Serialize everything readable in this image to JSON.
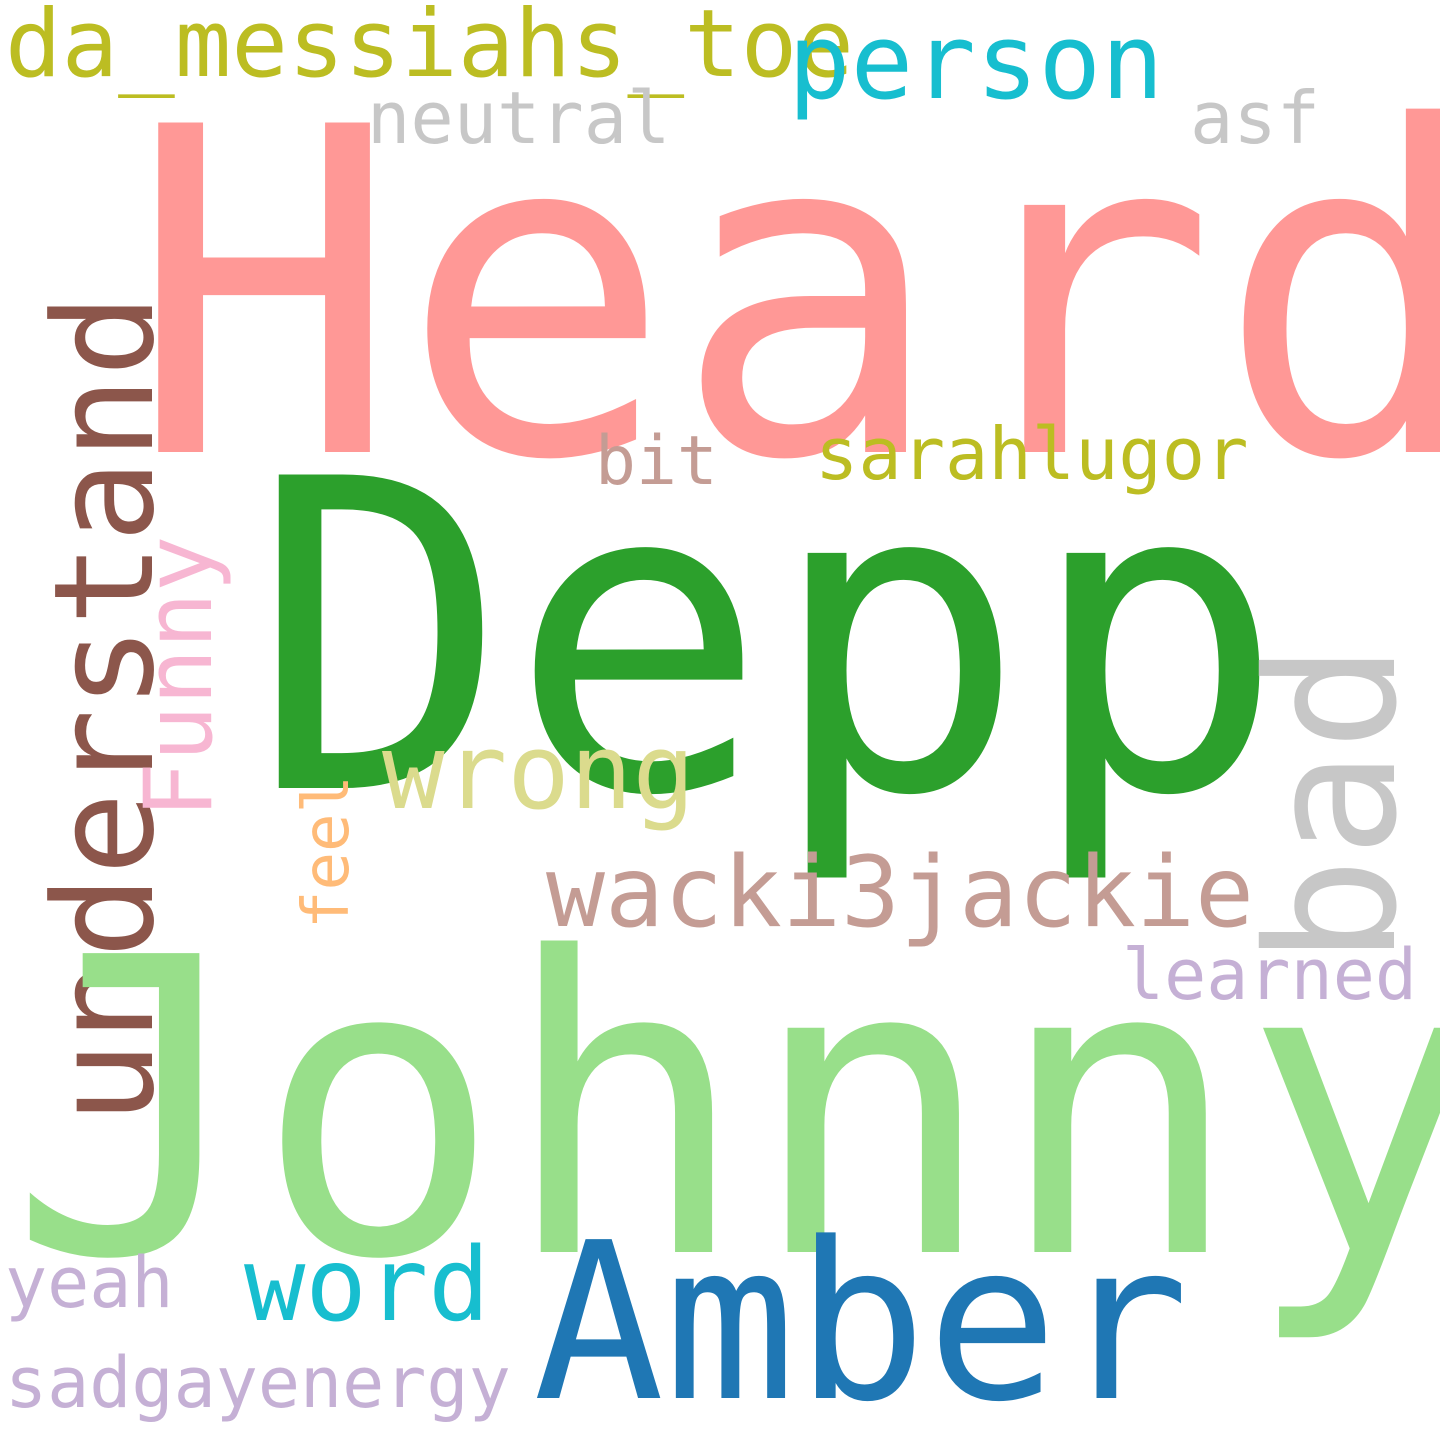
{
  "words": {
    "heard": {
      "text": "Heard",
      "color": "#ff9896"
    },
    "depp": {
      "text": "Depp",
      "color": "#2ca02c"
    },
    "johnny": {
      "text": "Johnny",
      "color": "#98df8a"
    },
    "amber": {
      "text": "Amber",
      "color": "#1f77b4"
    },
    "understand": {
      "text": "understand",
      "color": "#8c564b"
    },
    "bad": {
      "text": "bad",
      "color": "#c7c7c7"
    },
    "da_messiahs": {
      "text": "da_messiahs_toe",
      "color": "#bcbd22"
    },
    "person": {
      "text": "person",
      "color": "#17becf"
    },
    "wrong": {
      "text": "wrong",
      "color": "#dbdb8d"
    },
    "funny": {
      "text": "Funny",
      "color": "#f7b6d2"
    },
    "wacki3jackie": {
      "text": "wacki3jackie",
      "color": "#c49c94"
    },
    "word": {
      "text": "word",
      "color": "#17becf"
    },
    "sarahlugor": {
      "text": "sarahlugor",
      "color": "#bcbd22"
    },
    "sadgayenergy": {
      "text": "sadgayenergy",
      "color": "#c5b0d5"
    },
    "neutral": {
      "text": "neutral",
      "color": "#c7c7c7"
    },
    "learned": {
      "text": "learned",
      "color": "#c5b0d5"
    },
    "bit": {
      "text": "bit",
      "color": "#c49c94"
    },
    "asf": {
      "text": "asf",
      "color": "#c7c7c7"
    },
    "yeah": {
      "text": "yeah",
      "color": "#c5b0d5"
    },
    "feel": {
      "text": "feel",
      "color": "#ffbb78"
    }
  }
}
